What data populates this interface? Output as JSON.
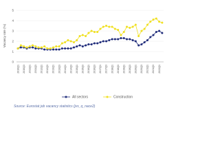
{
  "chart_data": {
    "type": "line",
    "y_label": "Vacancy rate (%)",
    "source": "Source: Eurostat job vacancy statistics (jvs_q_nace2)",
    "categories": [
      "2010Q1",
      null,
      "2010Q3",
      null,
      "2011Q1",
      null,
      "2011Q3",
      null,
      "2012Q1",
      null,
      "2012Q3",
      null,
      "2013Q1",
      null,
      "2013Q3",
      null,
      "2014Q1",
      null,
      "2014Q3",
      null,
      "2015Q1",
      null,
      "2015Q3",
      null,
      "2016Q1",
      null,
      "2016Q3",
      null,
      "2017Q1",
      null,
      "2017Q3",
      null,
      "2018Q1",
      null,
      "2018Q3",
      null,
      "2019Q1",
      null,
      "2019Q3",
      null,
      "2020Q1",
      null,
      "2020Q3",
      null,
      "2021Q1",
      null,
      "2021Q3",
      null,
      "2022Q1",
      null
    ],
    "series": [
      {
        "name": "All sectors",
        "color": "#1f2b7a",
        "values": [
          1.3,
          1.4,
          1.4,
          1.3,
          1.4,
          1.4,
          1.3,
          1.3,
          1.3,
          1.2,
          1.2,
          1.2,
          1.2,
          1.2,
          1.2,
          1.3,
          1.3,
          1.3,
          1.3,
          1.4,
          1.5,
          1.6,
          1.5,
          1.6,
          1.7,
          1.7,
          1.8,
          1.8,
          1.9,
          2.0,
          2.0,
          2.1,
          2.2,
          2.2,
          2.2,
          2.3,
          2.3,
          2.2,
          2.2,
          2.1,
          2.0,
          1.6,
          1.7,
          1.9,
          2.1,
          2.4,
          2.6,
          2.9,
          3.0,
          2.8
        ]
      },
      {
        "name": "Construction",
        "color": "#f0e020",
        "values": [
          1.3,
          1.6,
          1.5,
          1.4,
          1.5,
          1.6,
          1.5,
          1.4,
          1.4,
          1.5,
          1.3,
          1.3,
          1.4,
          1.5,
          1.5,
          1.8,
          1.9,
          2.1,
          2.0,
          1.9,
          2.1,
          2.5,
          2.6,
          2.5,
          2.8,
          3.0,
          2.9,
          2.9,
          3.2,
          3.4,
          3.5,
          3.4,
          3.4,
          3.2,
          3.1,
          2.6,
          2.9,
          3.4,
          3.3,
          3.4,
          3.6,
          2.5,
          3.0,
          3.2,
          3.6,
          3.9,
          4.1,
          4.2,
          3.9,
          3.8
        ]
      }
    ],
    "ylim": [
      0,
      5
    ],
    "yticks": [
      0,
      1,
      2,
      3,
      4,
      5
    ],
    "grid": true
  }
}
